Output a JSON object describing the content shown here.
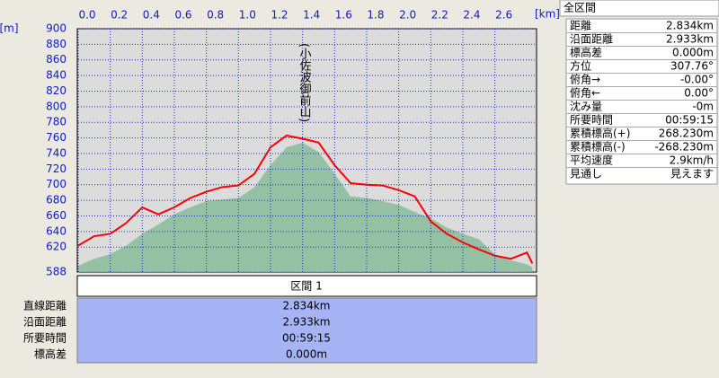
{
  "chart_data": {
    "type": "line",
    "x_unit_label": "[km]",
    "y_unit_label": "[m]",
    "annotation": "(小佐波御前山)",
    "x": [
      0,
      0.1,
      0.2,
      0.3,
      0.4,
      0.5,
      0.6,
      0.7,
      0.8,
      0.9,
      1.0,
      1.1,
      1.2,
      1.3,
      1.4,
      1.5,
      1.6,
      1.7,
      1.8,
      1.9,
      2.0,
      2.1,
      2.2,
      2.3,
      2.4,
      2.5,
      2.6,
      2.7,
      2.8,
      2.834
    ],
    "series": [
      {
        "type": "area",
        "color": "#94c0a4",
        "values": [
          596,
          605,
          611,
          622,
          637,
          649,
          662,
          671,
          679,
          681,
          683,
          697,
          725,
          748,
          754,
          742,
          714,
          685,
          683,
          679,
          674,
          665,
          657,
          645,
          637,
          630,
          611,
          603,
          598,
          594
        ]
      },
      {
        "type": "line",
        "color": "#ff0000",
        "values": [
          622,
          634,
          637,
          651,
          671,
          662,
          671,
          683,
          691,
          697,
          699,
          714,
          748,
          763,
          759,
          754,
          725,
          702,
          700,
          699,
          693,
          685,
          653,
          637,
          626,
          617,
          609,
          605,
          613,
          599
        ]
      }
    ],
    "xlim": [
      0,
      2.86
    ],
    "ylim": [
      588,
      900
    ],
    "xticks": [
      {
        "value": 0,
        "label": "0.0"
      },
      0.2,
      0.4,
      0.6,
      0.8,
      {
        "value": 1,
        "label": "1.0"
      },
      1.2,
      1.4,
      1.6,
      1.8,
      {
        "value": 2,
        "label": "2.0"
      },
      2.2,
      2.4,
      2.6
    ],
    "yticks": [
      588,
      620,
      640,
      660,
      680,
      700,
      720,
      740,
      760,
      780,
      800,
      820,
      840,
      860,
      880,
      900
    ],
    "grid": true
  },
  "summary": {
    "title": "全区間",
    "rows": [
      [
        "距離",
        "2.834km"
      ],
      [
        "沿面距離",
        "2.933km"
      ],
      [
        "標高差",
        "0.000m"
      ],
      [
        "方位",
        "307.76°"
      ],
      [
        "俯角→",
        "-0.00°"
      ],
      [
        "俯角←",
        "0.00°"
      ],
      [
        "沈み量",
        "-0m"
      ],
      [
        "所要時間",
        "00:59:15"
      ],
      [
        "累積標高(+)",
        "268.230m"
      ],
      [
        "累積標高(-)",
        "-268.230m"
      ],
      [
        "平均速度",
        "2.9km/h"
      ],
      [
        "見通し",
        "見えます"
      ]
    ]
  },
  "section": {
    "title": "区間 1",
    "rows": [
      [
        "直線距離",
        "2.834km"
      ],
      [
        "沿面距離",
        "2.933km"
      ],
      [
        "所要時間",
        "00:59:15"
      ],
      [
        "標高差",
        "0.000m"
      ]
    ]
  }
}
